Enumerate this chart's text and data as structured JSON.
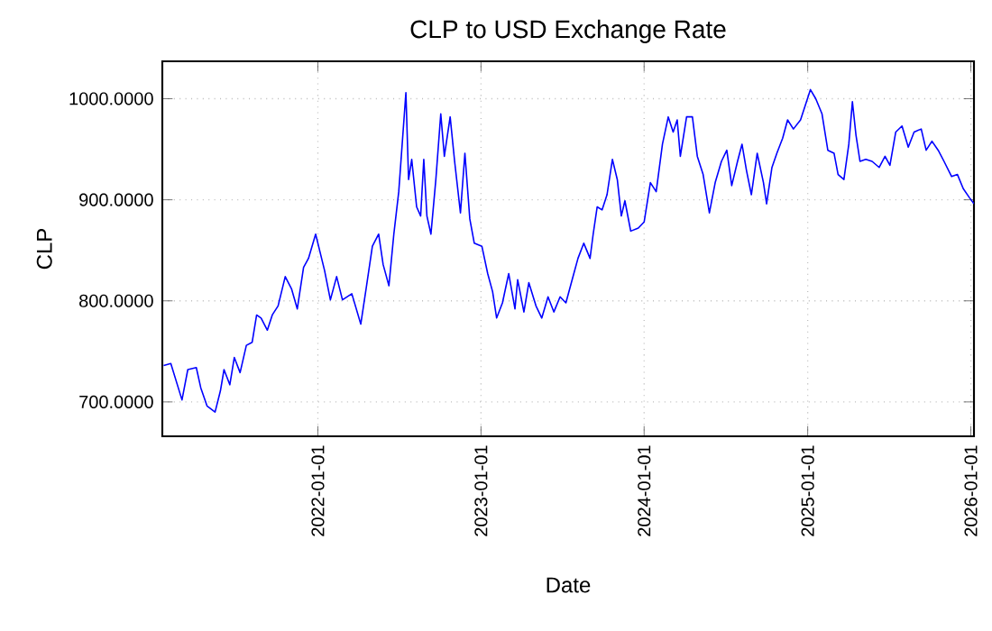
{
  "chart_data": {
    "type": "line",
    "title": "CLP to USD Exchange Rate",
    "xlabel": "Date",
    "ylabel": "CLP",
    "xlim": [
      "2021-01-18",
      "2026-01-08"
    ],
    "ylim": [
      666,
      1037
    ],
    "xticks": [
      "2022-01-01",
      "2023-01-01",
      "2024-01-01",
      "2025-01-01",
      "2026-01-01"
    ],
    "yticks": [
      {
        "value": 700,
        "label": "700.0000"
      },
      {
        "value": 800,
        "label": "800.0000"
      },
      {
        "value": 900,
        "label": "900.0000"
      },
      {
        "value": 1000,
        "label": "1000.0000"
      }
    ],
    "grid": true,
    "marker": "none",
    "line_style": "solid",
    "x": [
      "2021-01-21",
      "2021-02-06",
      "2021-03-03",
      "2021-03-16",
      "2021-04-04",
      "2021-04-14",
      "2021-04-28",
      "2021-05-16",
      "2021-05-28",
      "2021-06-05",
      "2021-06-18",
      "2021-06-28",
      "2021-07-11",
      "2021-07-25",
      "2021-08-07",
      "2021-08-17",
      "2021-08-27",
      "2021-09-10",
      "2021-09-21",
      "2021-10-04",
      "2021-10-20",
      "2021-11-03",
      "2021-11-16",
      "2021-11-30",
      "2021-12-11",
      "2021-12-27",
      "2022-01-06",
      "2022-01-16",
      "2022-01-29",
      "2022-02-12",
      "2022-02-25",
      "2022-03-18",
      "2022-04-07",
      "2022-04-20",
      "2022-05-03",
      "2022-05-17",
      "2022-05-27",
      "2022-06-09",
      "2022-06-20",
      "2022-07-01",
      "2022-07-17",
      "2022-07-23",
      "2022-07-30",
      "2022-08-10",
      "2022-08-19",
      "2022-08-26",
      "2022-09-02",
      "2022-09-11",
      "2022-09-22",
      "2022-10-03",
      "2022-10-11",
      "2022-10-24",
      "2022-11-03",
      "2022-11-16",
      "2022-11-26",
      "2022-12-07",
      "2022-12-17",
      "2023-01-03",
      "2023-01-16",
      "2023-01-27",
      "2023-02-05",
      "2023-02-18",
      "2023-03-04",
      "2023-03-18",
      "2023-03-24",
      "2023-04-07",
      "2023-04-18",
      "2023-05-04",
      "2023-05-17",
      "2023-05-31",
      "2023-06-13",
      "2023-06-27",
      "2023-07-10",
      "2023-07-24",
      "2023-08-06",
      "2023-08-19",
      "2023-09-02",
      "2023-09-09",
      "2023-09-18",
      "2023-09-29",
      "2023-10-10",
      "2023-10-22",
      "2023-11-02",
      "2023-11-11",
      "2023-11-19",
      "2023-12-02",
      "2023-12-19",
      "2024-01-01",
      "2024-01-15",
      "2024-01-28",
      "2024-02-11",
      "2024-02-24",
      "2024-03-06",
      "2024-03-15",
      "2024-03-22",
      "2024-04-05",
      "2024-04-18",
      "2024-04-29",
      "2024-05-12",
      "2024-05-26",
      "2024-06-08",
      "2024-06-22",
      "2024-07-04",
      "2024-07-15",
      "2024-07-28",
      "2024-08-07",
      "2024-08-17",
      "2024-08-28",
      "2024-09-10",
      "2024-09-24",
      "2024-10-01",
      "2024-10-13",
      "2024-10-24",
      "2024-11-06",
      "2024-11-17",
      "2024-11-30",
      "2024-12-16",
      "2024-12-27",
      "2025-01-07",
      "2025-01-19",
      "2025-02-02",
      "2025-02-15",
      "2025-03-01",
      "2025-03-10",
      "2025-03-23",
      "2025-04-03",
      "2025-04-11",
      "2025-04-19",
      "2025-04-28",
      "2025-05-11",
      "2025-05-25",
      "2025-06-10",
      "2025-06-23",
      "2025-07-04",
      "2025-07-17",
      "2025-07-31",
      "2025-08-14",
      "2025-08-27",
      "2025-09-12",
      "2025-09-23",
      "2025-10-06",
      "2025-10-20",
      "2025-11-02",
      "2025-11-19",
      "2025-12-02",
      "2025-12-15",
      "2025-12-29",
      "2026-01-08"
    ],
    "series": [
      {
        "color": "#0000ff",
        "values": [
          736,
          738,
          702,
          732,
          734,
          714,
          696,
          690,
          711,
          732,
          717,
          744,
          729,
          756,
          759,
          786,
          783,
          771,
          786,
          795,
          824,
          812,
          792,
          833,
          842,
          866,
          848,
          830,
          801,
          824,
          801,
          807,
          777,
          815,
          854,
          866,
          836,
          815,
          866,
          908,
          1006,
          920,
          940,
          893,
          884,
          940,
          884,
          866,
          920,
          985,
          943,
          982,
          938,
          887,
          946,
          881,
          857,
          854,
          827,
          809,
          783,
          798,
          827,
          792,
          821,
          789,
          818,
          795,
          783,
          804,
          789,
          804,
          798,
          821,
          842,
          857,
          842,
          866,
          893,
          890,
          905,
          940,
          920,
          884,
          899,
          869,
          872,
          878,
          917,
          908,
          955,
          982,
          967,
          979,
          943,
          982,
          982,
          943,
          925,
          887,
          917,
          938,
          949,
          914,
          938,
          955,
          929,
          905,
          946,
          917,
          896,
          932,
          946,
          961,
          979,
          970,
          979,
          994,
          1009,
          1000,
          985,
          949,
          946,
          925,
          920,
          955,
          997,
          964,
          938,
          940,
          938,
          932,
          943,
          934,
          967,
          973,
          952,
          967,
          970,
          949,
          958,
          949,
          938,
          923,
          925,
          911,
          902,
          896
        ]
      }
    ]
  }
}
